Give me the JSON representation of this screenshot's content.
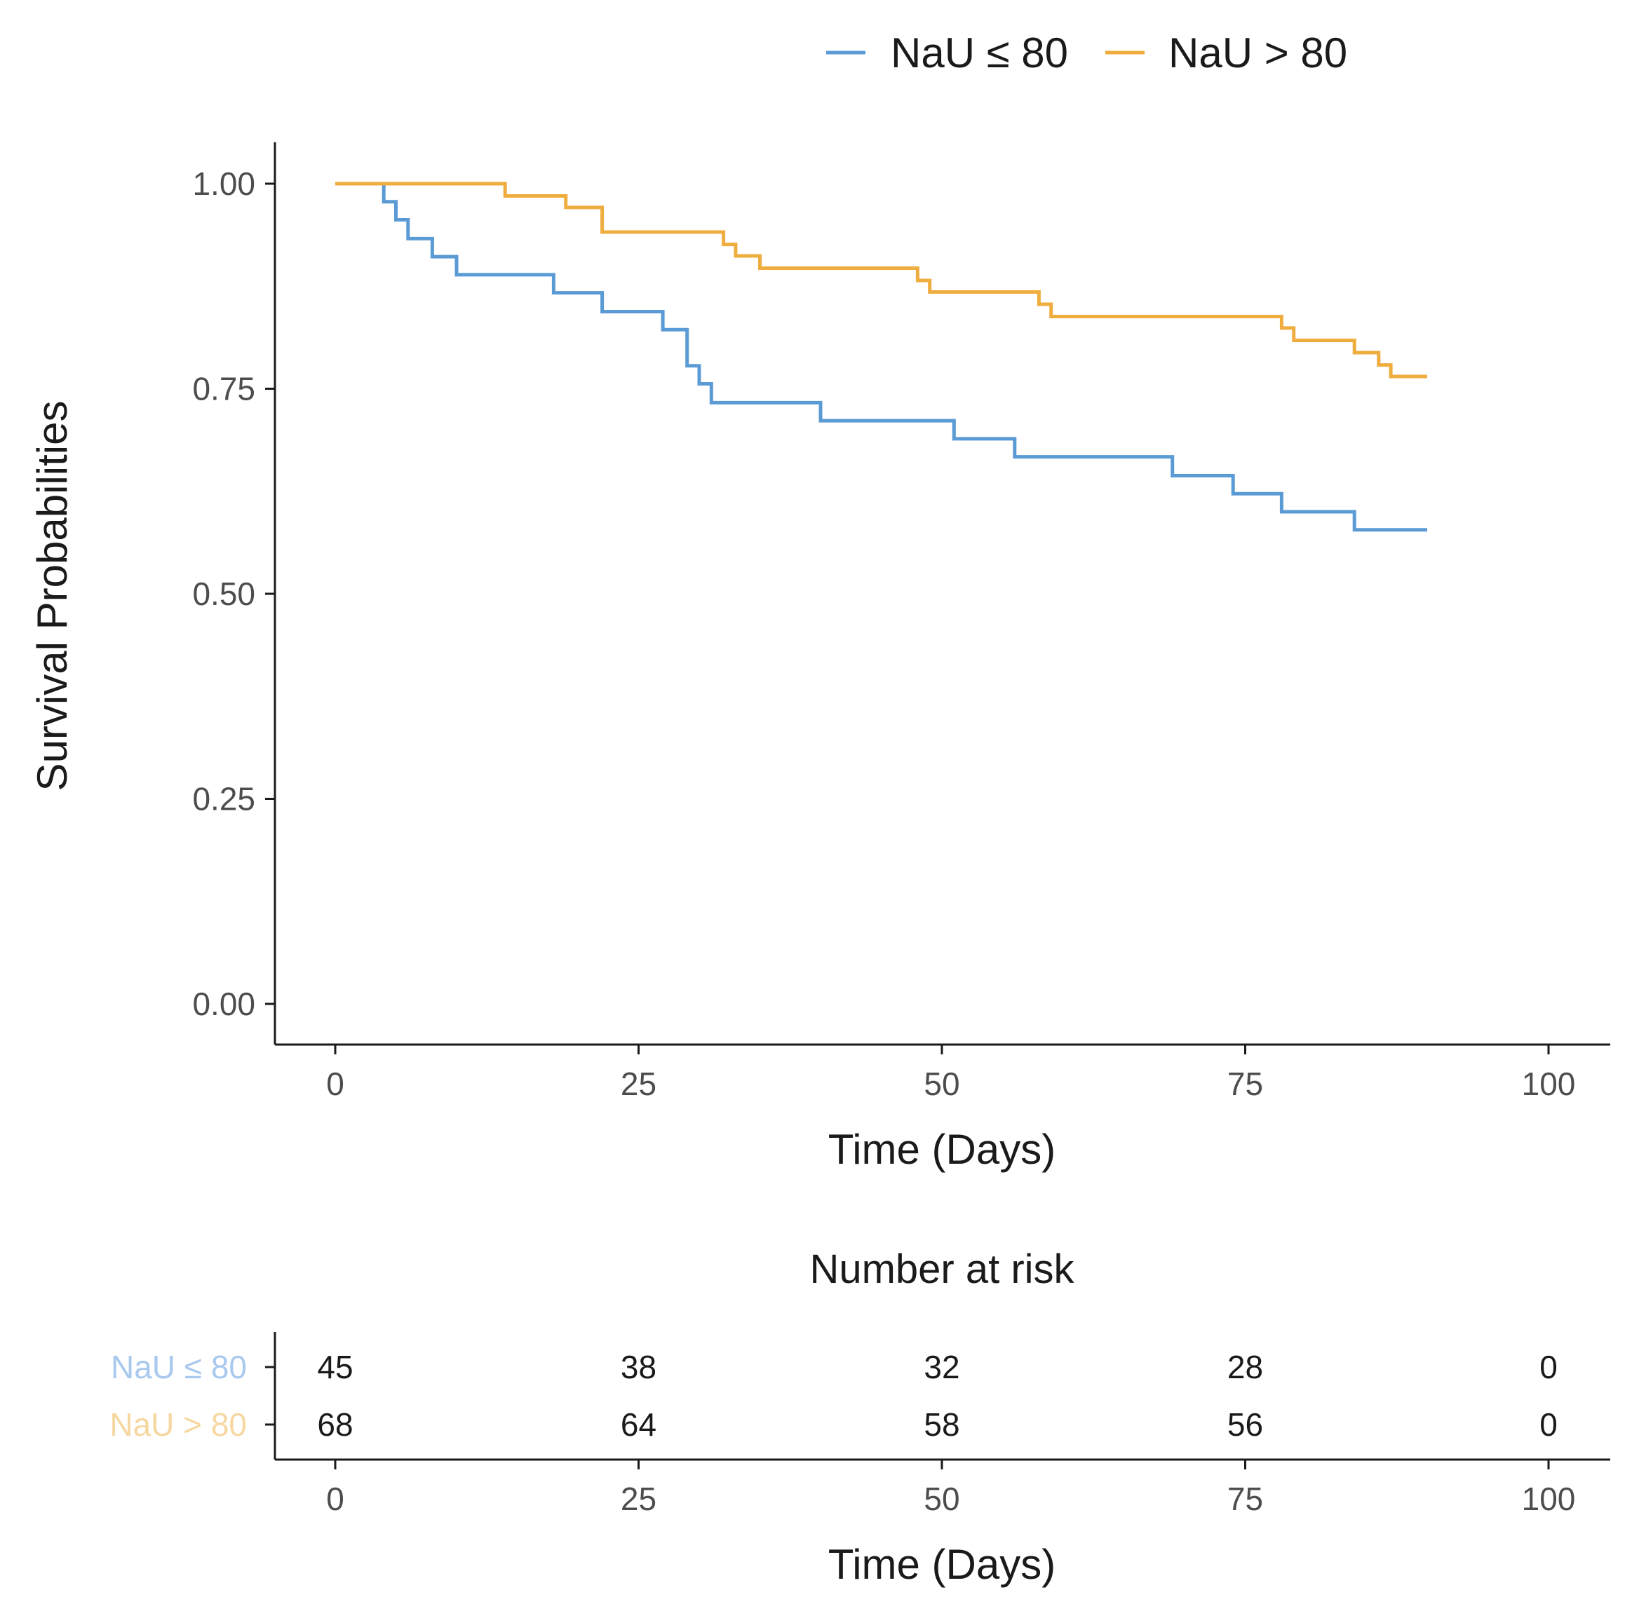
{
  "legend": {
    "items": [
      {
        "label": "NaU ≤ 80",
        "color": "#5b9bd5"
      },
      {
        "label": "NaU > 80",
        "color": "#f0ad3f"
      }
    ]
  },
  "chart_data": [
    {
      "type": "line",
      "subtype": "step",
      "title": "",
      "xlabel": "Time (Days)",
      "ylabel": "Survival Probabilities",
      "xlim": [
        0,
        100
      ],
      "ylim": [
        0,
        1
      ],
      "x_ticks": [
        0,
        25,
        50,
        75,
        100
      ],
      "x_tick_labels": [
        "0",
        "25",
        "50",
        "75",
        "100"
      ],
      "y_ticks": [
        0,
        0.25,
        0.5,
        0.75,
        1
      ],
      "y_tick_labels": [
        "0.00",
        "0.25",
        "0.50",
        "0.75",
        "1.00"
      ],
      "grid": false,
      "legend_position": "top-right",
      "series": [
        {
          "name": "NaU ≤ 80",
          "color": "#5b9bd5",
          "x": [
            0,
            4,
            5,
            6,
            8,
            10,
            18,
            22,
            27,
            29,
            30,
            31,
            40,
            51,
            56,
            69,
            74,
            78,
            84,
            90
          ],
          "y": [
            1.0,
            0.978,
            0.956,
            0.933,
            0.911,
            0.889,
            0.867,
            0.844,
            0.822,
            0.778,
            0.756,
            0.733,
            0.711,
            0.689,
            0.667,
            0.644,
            0.622,
            0.6,
            0.578,
            0.578
          ]
        },
        {
          "name": "NaU > 80",
          "color": "#f0ad3f",
          "x": [
            0,
            14,
            19,
            22,
            32,
            33,
            35,
            48,
            49,
            58,
            59,
            78,
            79,
            84,
            86,
            87,
            90
          ],
          "y": [
            1.0,
            0.985,
            0.971,
            0.941,
            0.926,
            0.912,
            0.897,
            0.882,
            0.868,
            0.853,
            0.838,
            0.824,
            0.809,
            0.794,
            0.779,
            0.765,
            0.765
          ]
        }
      ]
    },
    {
      "type": "table",
      "title": "Number at risk",
      "xlabel": "Time (Days)",
      "xlim": [
        0,
        100
      ],
      "x_ticks": [
        0,
        25,
        50,
        75,
        100
      ],
      "x_tick_labels": [
        "0",
        "25",
        "50",
        "75",
        "100"
      ],
      "rows": [
        {
          "label": "NaU ≤ 80",
          "color": "#a9c9ee",
          "values": [
            45,
            38,
            32,
            28,
            0
          ]
        },
        {
          "label": "NaU > 80",
          "color": "#f6d7a0",
          "values": [
            68,
            64,
            58,
            56,
            0
          ]
        }
      ]
    }
  ]
}
